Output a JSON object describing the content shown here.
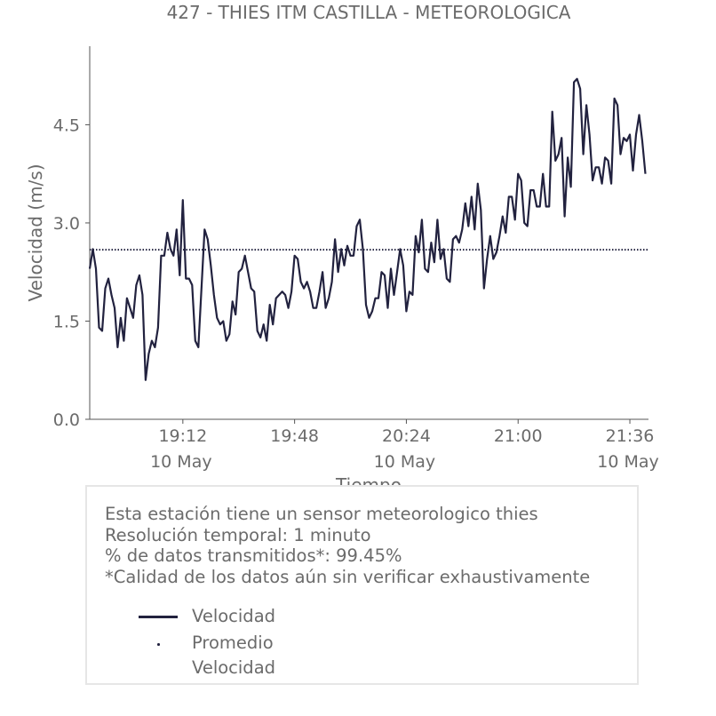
{
  "chart_data": {
    "type": "line",
    "title": "427 - THIES ITM CASTILLA - METEOROLOGICA",
    "xlabel": "Tiempo",
    "ylabel": "Velocidad (m/s)",
    "ylim": [
      0,
      5.7
    ],
    "xlim": [
      "2024-05-10 18:42",
      "2024-05-10 21:42"
    ],
    "yticks": [
      "0.0",
      "1.5",
      "3.0",
      "4.5"
    ],
    "xticks": [
      {
        "time": "19:12",
        "date": "10 May"
      },
      {
        "time": "19:48",
        "date": ""
      },
      {
        "time": "20:24",
        "date": "10 May"
      },
      {
        "time": "21:00",
        "date": ""
      },
      {
        "time": "21:36",
        "date": "10 May"
      }
    ],
    "grid": false,
    "x": [
      "18:42",
      "18:43",
      "18:44",
      "18:45",
      "18:46",
      "18:47",
      "18:48",
      "18:49",
      "18:50",
      "18:51",
      "18:52",
      "18:53",
      "18:54",
      "18:55",
      "18:56",
      "18:57",
      "18:58",
      "18:59",
      "19:00",
      "19:01",
      "19:02",
      "19:03",
      "19:04",
      "19:05",
      "19:06",
      "19:07",
      "19:08",
      "19:09",
      "19:10",
      "19:11",
      "19:12",
      "19:13",
      "19:14",
      "19:15",
      "19:16",
      "19:17",
      "19:18",
      "19:19",
      "19:20",
      "19:21",
      "19:22",
      "19:23",
      "19:24",
      "19:25",
      "19:26",
      "19:27",
      "19:28",
      "19:29",
      "19:30",
      "19:31",
      "19:32",
      "19:33",
      "19:34",
      "19:35",
      "19:36",
      "19:37",
      "19:38",
      "19:39",
      "19:40",
      "19:41",
      "19:42",
      "19:43",
      "19:44",
      "19:45",
      "19:46",
      "19:47",
      "19:48",
      "19:49",
      "19:50",
      "19:51",
      "19:52",
      "19:53",
      "19:54",
      "19:55",
      "19:56",
      "19:57",
      "19:58",
      "19:59",
      "20:00",
      "20:01",
      "20:02",
      "20:03",
      "20:04",
      "20:05",
      "20:06",
      "20:07",
      "20:08",
      "20:09",
      "20:10",
      "20:11",
      "20:12",
      "20:13",
      "20:14",
      "20:15",
      "20:16",
      "20:17",
      "20:18",
      "20:19",
      "20:20",
      "20:21",
      "20:22",
      "20:23",
      "20:24",
      "20:25",
      "20:26",
      "20:27",
      "20:28",
      "20:29",
      "20:30",
      "20:31",
      "20:32",
      "20:33",
      "20:34",
      "20:35",
      "20:36",
      "20:37",
      "20:38",
      "20:39",
      "20:40",
      "20:41",
      "20:42",
      "20:43",
      "20:44",
      "20:45",
      "20:46",
      "20:47",
      "20:48",
      "20:49",
      "20:50",
      "20:51",
      "20:52",
      "20:53",
      "20:54",
      "20:55",
      "20:56",
      "20:57",
      "20:58",
      "20:59",
      "21:00",
      "21:01",
      "21:02",
      "21:03",
      "21:04",
      "21:05",
      "21:06",
      "21:07",
      "21:08",
      "21:09",
      "21:10",
      "21:11",
      "21:12",
      "21:13",
      "21:14",
      "21:15",
      "21:16",
      "21:17",
      "21:18",
      "21:19",
      "21:20",
      "21:21",
      "21:22",
      "21:23",
      "21:24",
      "21:25",
      "21:26",
      "21:27",
      "21:28",
      "21:29",
      "21:30",
      "21:31",
      "21:32",
      "21:33",
      "21:34",
      "21:35",
      "21:36",
      "21:37",
      "21:38",
      "21:39",
      "21:40",
      "21:41"
    ],
    "series": [
      {
        "name": "Velocidad",
        "style": "solid",
        "color": "#22223f",
        "values": [
          2.3,
          2.6,
          2.3,
          1.4,
          1.35,
          2.0,
          2.15,
          1.9,
          1.7,
          1.1,
          1.55,
          1.2,
          1.85,
          1.7,
          1.55,
          2.05,
          2.2,
          1.9,
          0.6,
          1.0,
          1.2,
          1.1,
          1.4,
          2.5,
          2.5,
          2.85,
          2.6,
          2.5,
          2.9,
          2.2,
          3.35,
          2.15,
          2.15,
          2.05,
          1.2,
          1.1,
          2.0,
          2.9,
          2.75,
          2.35,
          1.9,
          1.55,
          1.45,
          1.5,
          1.2,
          1.3,
          1.8,
          1.6,
          2.25,
          2.3,
          2.5,
          2.25,
          2.0,
          1.95,
          1.35,
          1.25,
          1.45,
          1.2,
          1.75,
          1.45,
          1.85,
          1.9,
          1.95,
          1.9,
          1.7,
          1.95,
          2.5,
          2.45,
          2.1,
          2.0,
          2.1,
          1.95,
          1.7,
          1.7,
          1.95,
          2.25,
          1.7,
          1.85,
          2.1,
          2.75,
          2.25,
          2.6,
          2.35,
          2.65,
          2.5,
          2.5,
          2.95,
          3.05,
          2.6,
          1.75,
          1.55,
          1.65,
          1.85,
          1.85,
          2.25,
          2.2,
          1.7,
          2.3,
          1.9,
          2.25,
          2.6,
          2.35,
          1.65,
          1.95,
          1.9,
          2.8,
          2.55,
          3.05,
          2.3,
          2.25,
          2.7,
          2.4,
          3.05,
          2.45,
          2.6,
          2.15,
          2.1,
          2.75,
          2.8,
          2.7,
          2.9,
          3.3,
          2.95,
          3.4,
          2.9,
          3.6,
          3.2,
          2.0,
          2.45,
          2.8,
          2.45,
          2.55,
          2.8,
          3.1,
          2.85,
          3.4,
          3.4,
          3.05,
          3.75,
          3.65,
          3.0,
          2.95,
          3.5,
          3.5,
          3.25,
          3.25,
          3.75,
          3.25,
          3.25,
          4.7,
          3.95,
          4.05,
          4.3,
          3.1,
          4.0,
          3.55,
          5.15,
          5.2,
          5.05,
          4.05,
          4.8,
          4.35,
          3.65,
          3.85,
          3.85,
          3.6,
          4.0,
          3.95,
          3.6,
          4.9,
          4.8,
          4.05,
          4.3,
          4.25,
          4.35,
          3.8,
          4.35,
          4.65,
          4.25,
          3.75
        ]
      },
      {
        "name": "Promedio Velocidad",
        "style": "dotted",
        "color": "#22223f",
        "values_constant": 2.59
      }
    ],
    "legend": "bottom-box"
  },
  "info": {
    "line1": "Esta estación tiene un sensor meteorologico thies",
    "line2": "Resolución temporal: 1 minuto",
    "line3": "% de datos transmitidos*: 99.45%",
    "line4": "*Calidad de los datos aún sin verificar exhaustivamente"
  },
  "legend": {
    "velocidad": "Velocidad",
    "promedio": "Promedio Velocidad"
  }
}
